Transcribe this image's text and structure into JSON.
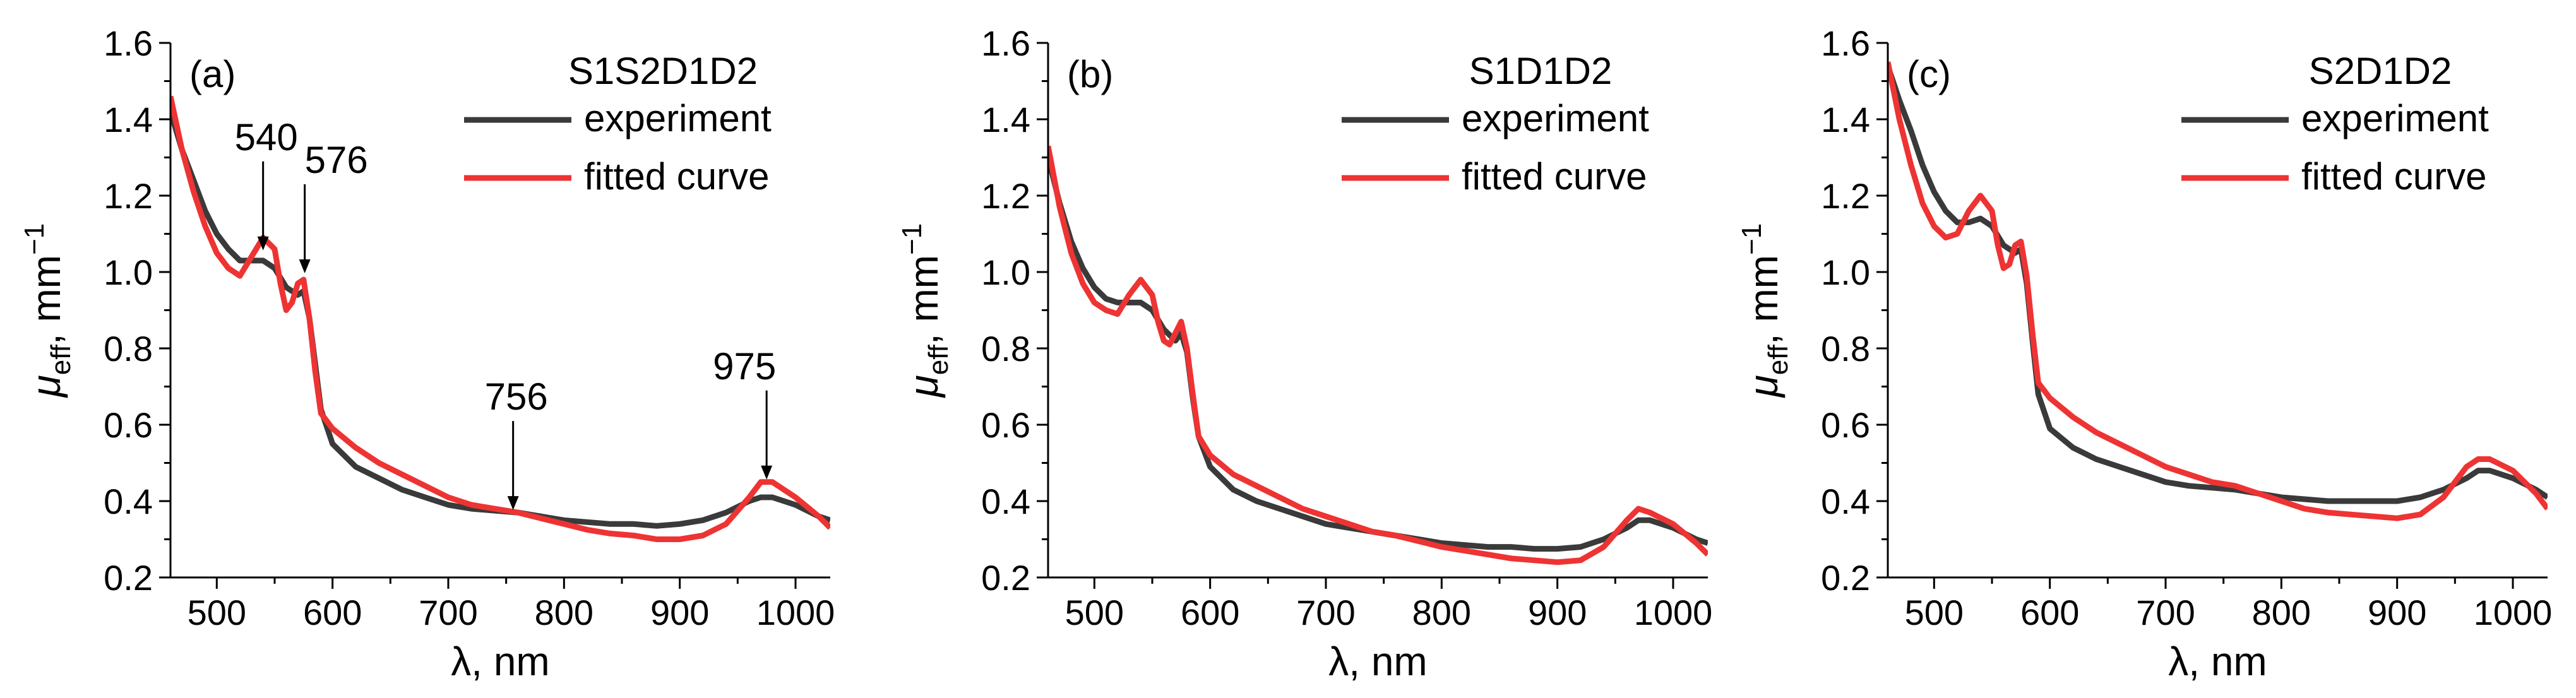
{
  "colors": {
    "experiment": "#3a3a3a",
    "fitted": "#ee3333",
    "axis": "#000000"
  },
  "chart_data": [
    {
      "type": "line",
      "panel_label": "(a)",
      "legend_title": "S1S2D1D2",
      "legend_placement": "top-right",
      "xlabel": "λ, nm",
      "ylabel_main": "μ",
      "ylabel_sub": "eff",
      "ylabel_tail": ", mm",
      "ylabel_sup": "−1",
      "xlim": [
        460,
        1030
      ],
      "ylim": [
        0.2,
        1.6
      ],
      "xticks": [
        500,
        600,
        700,
        800,
        900,
        1000
      ],
      "yticks": [
        0.2,
        0.4,
        0.6,
        0.8,
        1.0,
        1.2,
        1.4,
        1.6
      ],
      "xtick_labels": [
        "500",
        "600",
        "700",
        "800",
        "900",
        "1000"
      ],
      "ytick_labels": [
        "0.2",
        "0.4",
        "0.6",
        "0.8",
        "1.0",
        "1.2",
        "1.4",
        "1.6"
      ],
      "series": [
        {
          "name": "experiment",
          "x": [
            460,
            470,
            480,
            490,
            500,
            510,
            520,
            530,
            540,
            550,
            560,
            570,
            575,
            580,
            585,
            590,
            600,
            620,
            640,
            660,
            680,
            700,
            720,
            740,
            760,
            780,
            800,
            820,
            840,
            860,
            880,
            900,
            920,
            940,
            960,
            970,
            980,
            1000,
            1020,
            1030
          ],
          "y": [
            1.42,
            1.32,
            1.24,
            1.16,
            1.1,
            1.06,
            1.03,
            1.03,
            1.03,
            1.01,
            0.96,
            0.94,
            0.95,
            0.88,
            0.76,
            0.64,
            0.55,
            0.49,
            0.46,
            0.43,
            0.41,
            0.39,
            0.38,
            0.375,
            0.37,
            0.36,
            0.35,
            0.345,
            0.34,
            0.34,
            0.335,
            0.34,
            0.35,
            0.37,
            0.4,
            0.41,
            0.41,
            0.39,
            0.36,
            0.35
          ]
        },
        {
          "name": "fitted curve",
          "x": [
            460,
            470,
            480,
            490,
            500,
            510,
            520,
            530,
            540,
            550,
            555,
            560,
            565,
            570,
            575,
            580,
            585,
            590,
            600,
            620,
            640,
            660,
            680,
            700,
            720,
            740,
            760,
            780,
            800,
            820,
            840,
            860,
            880,
            900,
            920,
            940,
            960,
            970,
            980,
            1000,
            1020,
            1030
          ],
          "y": [
            1.46,
            1.32,
            1.21,
            1.12,
            1.05,
            1.01,
            0.99,
            1.04,
            1.09,
            1.06,
            0.97,
            0.9,
            0.92,
            0.97,
            0.98,
            0.88,
            0.74,
            0.63,
            0.59,
            0.54,
            0.5,
            0.47,
            0.44,
            0.41,
            0.39,
            0.38,
            0.37,
            0.355,
            0.34,
            0.325,
            0.315,
            0.31,
            0.3,
            0.3,
            0.31,
            0.34,
            0.41,
            0.45,
            0.45,
            0.41,
            0.36,
            0.33
          ]
        }
      ],
      "annotations": [
        {
          "text": "540",
          "x": 540,
          "y": 1.05
        },
        {
          "text": "576",
          "x": 576,
          "y": 0.99
        },
        {
          "text": "756",
          "x": 756,
          "y": 0.37
        },
        {
          "text": "975",
          "x": 975,
          "y": 0.45
        }
      ]
    },
    {
      "type": "line",
      "panel_label": "(b)",
      "legend_title": "S1D1D2",
      "legend_placement": "top-right",
      "xlabel": "λ, nm",
      "ylabel_main": "μ",
      "ylabel_sub": "eff",
      "ylabel_tail": ", mm",
      "ylabel_sup": "−1",
      "xlim": [
        460,
        1030
      ],
      "ylim": [
        0.2,
        1.6
      ],
      "xticks": [
        500,
        600,
        700,
        800,
        900,
        1000
      ],
      "yticks": [
        0.2,
        0.4,
        0.6,
        0.8,
        1.0,
        1.2,
        1.4,
        1.6
      ],
      "xtick_labels": [
        "500",
        "600",
        "700",
        "800",
        "900",
        "1000"
      ],
      "ytick_labels": [
        "0.2",
        "0.4",
        "0.6",
        "0.8",
        "1.0",
        "1.2",
        "1.4",
        "1.6"
      ],
      "series": [
        {
          "name": "experiment",
          "x": [
            460,
            470,
            480,
            490,
            500,
            510,
            520,
            530,
            540,
            550,
            560,
            570,
            575,
            580,
            585,
            590,
            600,
            620,
            640,
            660,
            680,
            700,
            720,
            740,
            760,
            780,
            800,
            820,
            840,
            860,
            880,
            900,
            920,
            940,
            960,
            970,
            980,
            1000,
            1020,
            1030
          ],
          "y": [
            1.3,
            1.18,
            1.08,
            1.01,
            0.96,
            0.93,
            0.92,
            0.92,
            0.92,
            0.9,
            0.85,
            0.82,
            0.84,
            0.79,
            0.67,
            0.57,
            0.49,
            0.43,
            0.4,
            0.38,
            0.36,
            0.34,
            0.33,
            0.32,
            0.31,
            0.3,
            0.29,
            0.285,
            0.28,
            0.28,
            0.275,
            0.275,
            0.28,
            0.3,
            0.33,
            0.35,
            0.35,
            0.33,
            0.3,
            0.29
          ]
        },
        {
          "name": "fitted curve",
          "x": [
            460,
            470,
            480,
            490,
            500,
            510,
            520,
            530,
            540,
            550,
            555,
            560,
            565,
            570,
            575,
            580,
            585,
            590,
            600,
            620,
            640,
            660,
            680,
            700,
            720,
            740,
            760,
            780,
            800,
            820,
            840,
            860,
            880,
            900,
            920,
            940,
            960,
            970,
            980,
            1000,
            1020,
            1030
          ],
          "y": [
            1.33,
            1.17,
            1.05,
            0.97,
            0.92,
            0.9,
            0.89,
            0.94,
            0.98,
            0.94,
            0.87,
            0.82,
            0.81,
            0.84,
            0.87,
            0.8,
            0.68,
            0.57,
            0.52,
            0.47,
            0.44,
            0.41,
            0.38,
            0.36,
            0.34,
            0.32,
            0.31,
            0.295,
            0.28,
            0.27,
            0.26,
            0.25,
            0.245,
            0.24,
            0.245,
            0.28,
            0.35,
            0.38,
            0.37,
            0.34,
            0.29,
            0.26
          ]
        }
      ],
      "annotations": []
    },
    {
      "type": "line",
      "panel_label": "(c)",
      "legend_title": "S2D1D2",
      "legend_placement": "top-right",
      "xlabel": "λ, nm",
      "ylabel_main": "μ",
      "ylabel_sub": "eff",
      "ylabel_tail": ", mm",
      "ylabel_sup": "−1",
      "xlim": [
        460,
        1030
      ],
      "ylim": [
        0.2,
        1.6
      ],
      "xticks": [
        500,
        600,
        700,
        800,
        900,
        1000
      ],
      "yticks": [
        0.2,
        0.4,
        0.6,
        0.8,
        1.0,
        1.2,
        1.4,
        1.6
      ],
      "xtick_labels": [
        "500",
        "600",
        "700",
        "800",
        "900",
        "1000"
      ],
      "ytick_labels": [
        "0.2",
        "0.4",
        "0.6",
        "0.8",
        "1.0",
        "1.2",
        "1.4",
        "1.6"
      ],
      "series": [
        {
          "name": "experiment",
          "x": [
            460,
            470,
            480,
            490,
            500,
            510,
            520,
            530,
            540,
            550,
            560,
            570,
            575,
            580,
            585,
            590,
            600,
            620,
            640,
            660,
            680,
            700,
            720,
            740,
            760,
            780,
            800,
            820,
            840,
            860,
            880,
            900,
            920,
            940,
            960,
            970,
            980,
            1000,
            1020,
            1030
          ],
          "y": [
            1.54,
            1.45,
            1.37,
            1.28,
            1.21,
            1.16,
            1.13,
            1.13,
            1.14,
            1.12,
            1.07,
            1.05,
            1.06,
            0.97,
            0.82,
            0.68,
            0.59,
            0.54,
            0.51,
            0.49,
            0.47,
            0.45,
            0.44,
            0.435,
            0.43,
            0.42,
            0.41,
            0.405,
            0.4,
            0.4,
            0.4,
            0.4,
            0.41,
            0.43,
            0.46,
            0.48,
            0.48,
            0.46,
            0.43,
            0.41
          ]
        },
        {
          "name": "fitted curve",
          "x": [
            460,
            470,
            480,
            490,
            500,
            510,
            520,
            530,
            540,
            550,
            555,
            560,
            565,
            570,
            575,
            580,
            585,
            590,
            600,
            620,
            640,
            660,
            680,
            700,
            720,
            740,
            760,
            780,
            800,
            820,
            840,
            860,
            880,
            900,
            920,
            940,
            960,
            970,
            980,
            1000,
            1020,
            1030
          ],
          "y": [
            1.55,
            1.4,
            1.28,
            1.18,
            1.12,
            1.09,
            1.1,
            1.16,
            1.2,
            1.16,
            1.07,
            1.01,
            1.02,
            1.07,
            1.08,
            0.99,
            0.84,
            0.71,
            0.67,
            0.62,
            0.58,
            0.55,
            0.52,
            0.49,
            0.47,
            0.45,
            0.44,
            0.42,
            0.4,
            0.38,
            0.37,
            0.365,
            0.36,
            0.355,
            0.365,
            0.41,
            0.49,
            0.51,
            0.51,
            0.48,
            0.42,
            0.38
          ]
        }
      ],
      "annotations": []
    }
  ]
}
